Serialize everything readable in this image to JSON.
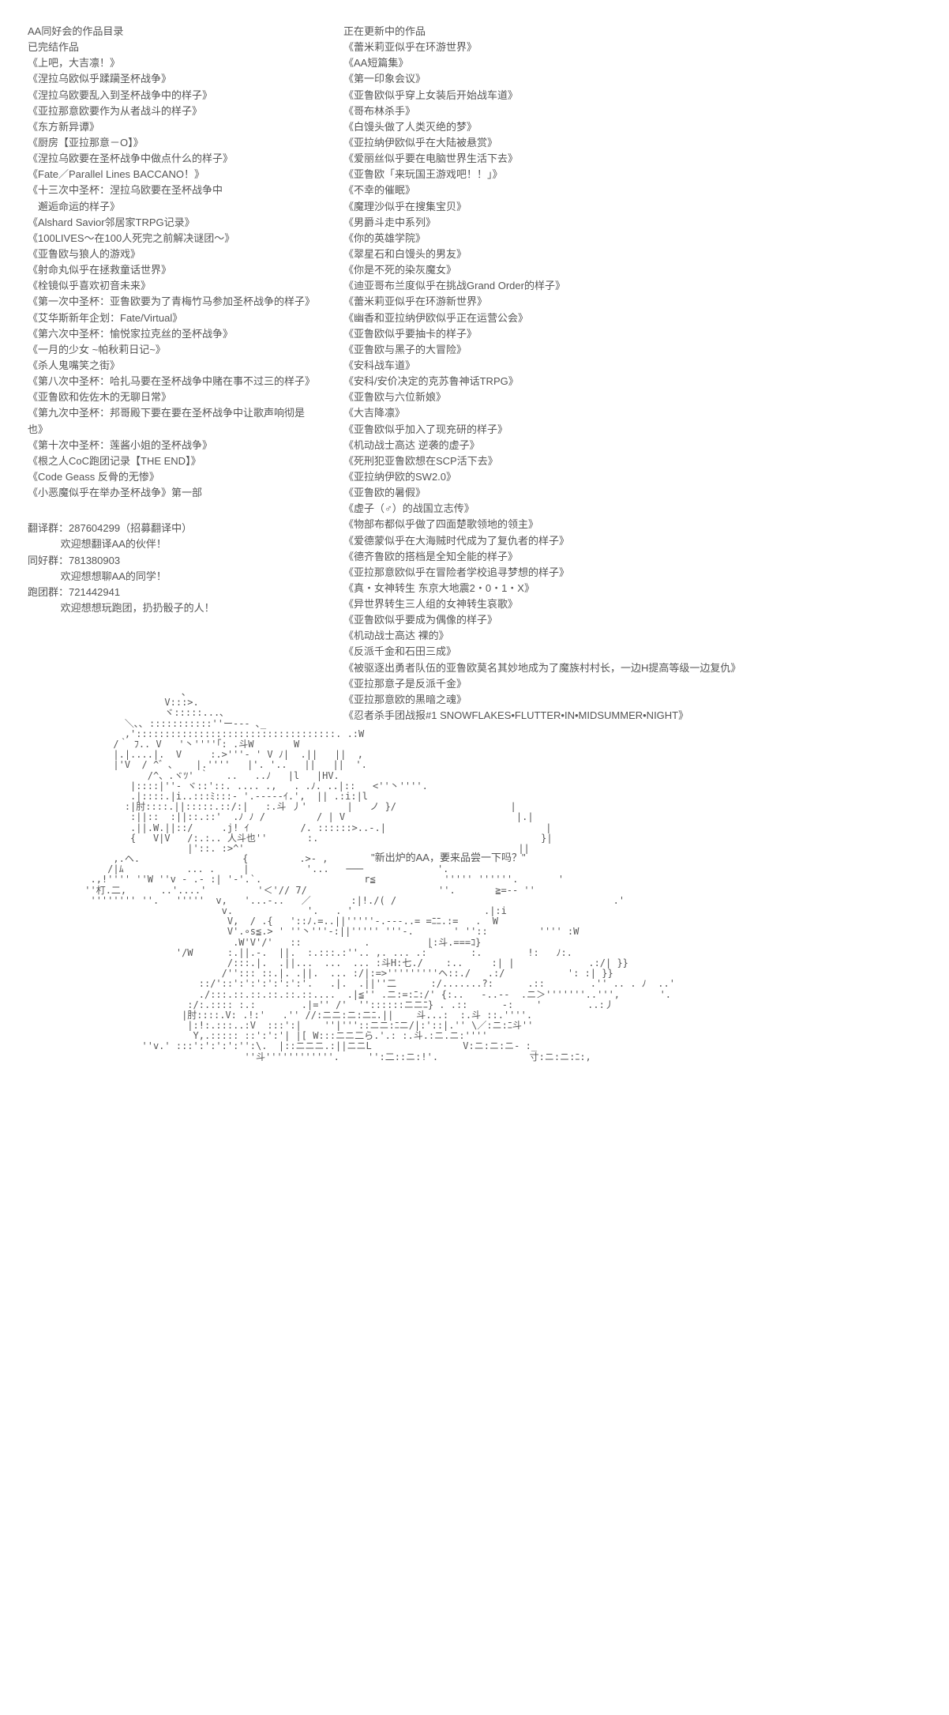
{
  "left": {
    "catalog_title": "AA同好会的作品目录",
    "completed_title": "已完结作品",
    "completed_works": [
      "《上吧，大吉凛！》",
      "《涅拉乌欧似乎蹂躏圣杯战争》",
      "《涅拉乌欧要乱入到圣杯战争中的样子》",
      "《亚拉那意欧要作为从者战斗的样子》",
      "《东方新异谭》",
      "《厨房【亚拉那意－O】》",
      "《涅拉乌欧要在圣杯战争中做点什么的样子》",
      "《Fate／Parallel Lines BACCANO！》",
      "《十三次中圣杯：涅拉乌欧要在圣杯战争中",
      "　邂逅命运的样子》",
      "《Alshard Savior邻居家TRPG记录》",
      "《100LIVES～在100人死完之前解决谜团～》",
      "《亚鲁欧与狼人的游戏》",
      "《射命丸似乎在拯救童话世界》",
      "《栓镜似乎喜欢初音未来》",
      "《第一次中圣杯：亚鲁欧要为了青梅竹马参加圣杯战争的样子》",
      "《艾华斯新年企划：Fate/Virtual》",
      "《第六次中圣杯：愉悦家拉克丝的圣杯战争》",
      "《一月的少女 ~帕秋莉日记~》",
      "《杀人鬼嘴笑之街》",
      "《第八次中圣杯：哈扎马要在圣杯战争中赌在事不过三的样子》",
      "《亚鲁欧和佐佐木的无聊日常》",
      "《第九次中圣杯：邦哥殿下要在要在圣杯战争中让歌声响彻是也》",
      "《第十次中圣杯：莲酱小姐的圣杯战争》",
      "《根之人CoC跑团记录【THE END】》",
      "《Code Geass 反骨的无惨》",
      "《小恶魔似乎在举办圣杯战争》第一部"
    ],
    "groups": [
      {
        "label": "翻译群：287604299（招募翻译中）",
        "sub": "欢迎想翻译AA的伙伴！"
      },
      {
        "label": "同好群：781380903",
        "sub": "欢迎想想聊AA的同学！"
      },
      {
        "label": "跑团群：721442941",
        "sub": "欢迎想想玩跑团，扔扔骰子的人！"
      }
    ],
    "ascii_art": "                           ､\n                        V:::>.\n                        ヾ:::::...､\n                 ＼､､ :::::::::::''ー--- ､_\n                 ,':::::::::::::::::::::::::::::::::::. .:W\n               /｀ ﾌ.. V   '丶''''｢: .斗W       W\n               |.|....|.  V     :.>'''- ' V ﾉ|  .||   ||  ,\n               |'V  / ^゛､    |.''''   |'. '..   ||   ||  '.\n                     /^、.ヾﾂ' ｀   ..   ..ﾉ   |l   |HV.\n                  |::::|''- ヾ::'::. .... .,   . .ﾉ. ..|::   <''丶''''.\n                  .|::::.|i..:::ﾐ:::- '.-----ｲ.',  || .:i:|l\n                 :|肘::::.||:::::.::/:|   :.斗 丿'       |   ノ }/                    |\n                  :||::  :||::.::'  .ﾉ ﾉ /         / | V                              |.|\n                  .||.W.||::/     .j! ｲ         /. ::::::>..-.|                            |\n                  {   V|V   /:.:.. 人斗也''       :.                                       }|\n                            |'::. :>^'                                                ||\n               ,.ヘ.                  {         .>- ,                    '\n              /|ﾑ           ... .     |          '...   ───             '.\n           .,!'''' ''W ''v - .- :| '-'.`.                  r≦            ''''' ''''''.       '\n          ''朾.二,      ..'....'         '＜'// 7/                       ''.       ≧=-- ''\n           '''''''' ''.   '''''  v,   '...-..   ／       :|!./( /                                      .'\n                                  v.             '.   . '                       .|:i\n                                   V,  / .{   '::ﾉ.=..||'''''-.---..= =ﾆﾆ.:=   .  W\n                                   V'.∘s≦.> ' ''丶'''-:||''''' '''-.       ' ''::         '''' :W\n                                    .W'V'/'   ::           .          |:斗.===ｺ}\n                          '/W      :.||.-.  ||.  :.:::.:''.. ,. ... .:｀      :.        !:   ﾉ:.\n                                   /:::.|.  .||...  ...  ... :斗H:七./    :..     :| |             .:/| }}\n                                  /''::: ::.|. .||.  ... :/|:=>'''''''''ヘ::./   .:/           ': :| }}\n                              ::/'::':':':':':':'.   .|.  .||''二      :/.......?:      .::        .'' .. . ﾉ  ..'\n                              ./:::.::.::.::.::.::....  .|≦'' .ニ:=:ﾆ:/' {:..   -..--  .ニ＞'''''''..''',       '.\n                            :/:.:::: :.:        .|='' /'  ''::::::ニニﾆ} . .::      -:    '        ..:丿\n                           |肘::::.V: .!:'   .'' //:ニニ:ニ:ニﾆ.||    斗...:  :.斗 ::.''''.\n                            |:!:.:::..:V  :::':|    ''|'''::ニニ:ﾆニ/|:'::|.'' \\／:ニ:ﾆ斗''\n                             Y,.::::: ::':':'| |[ W:::ニニ二ら.'.: :.斗.:ニ.ニ:''''\n                    ''v.' :::':':':':'':\\.  |::ニニニ.:||ニニL                V:ニ:ニ:ニ- :_\n                                      ''斗''''''''''''.     '':二::ニ:!'.                寸:ニ:ニ:ﾆ:,"
  },
  "right": {
    "updating_title": "正在更新中的作品",
    "updating_works": [
      "《蕾米莉亚似乎在环游世界》",
      "《AA短篇集》",
      "《第一印象会议》",
      "《亚鲁欧似乎穿上女装后开始战车道》",
      "《哥布林杀手》",
      "《白馒头做了人类灭绝的梦》",
      "《亚拉纳伊欧似乎在大陆被悬赏》",
      "《爱丽丝似乎要在电脑世界生活下去》",
      "《亚鲁欧「来玩国王游戏吧！！」》",
      "《不幸的催眠》",
      "《魔理沙似乎在搜集宝贝》",
      "《男爵斗走中系列》",
      "《你的英雄学院》",
      "《翠星石和白馒头的男友》",
      "《你是不死的染灰魔女》",
      "《迪亚哥布兰度似乎在挑战Grand Order的样子》",
      "《蕾米莉亚似乎在环游新世界》",
      "《幽香和亚拉纳伊欧似乎正在运营公会》",
      "《亚鲁欧似乎要抽卡的样子》",
      "《亚鲁欧与黑子的大冒险》",
      "《安科战车道》",
      "《安科/安价决定的克苏鲁神话TRPG》",
      "《亚鲁欧与六位新娘》",
      "《大吉降凛》",
      "《亚鲁欧似乎加入了现充研的样子》",
      "《机动战士高达 逆袭的虚子》",
      "《死刑犯亚鲁欧想在SCP活下去》",
      "《亚拉纳伊欧的SW2.0》",
      "《亚鲁欧的暑假》",
      "《虚子（♂）的战国立志传》",
      "《物部布都似乎做了四面楚歌领地的领主》",
      "《爱德蒙似乎在大海贼时代成为了复仇者的样子》",
      "《德齐鲁欧的搭档是全知全能的样子》",
      "《亚拉那意欧似乎在冒险者学校追寻梦想的样子》",
      "《真・女神转生 东京大地震2・0・1・X》",
      "《异世界转生三人组的女神转生哀歌》",
      "《亚鲁欧似乎要成为偶像的样子》",
      "《机动战士高达 裸的》",
      "《反派千金和石田三成》",
      "《被驱逐出勇者队伍的亚鲁欧莫名其妙地成为了魔族村村长，一边H提高等级一边复仇》",
      "《亚拉那意子是反派千金》",
      "《亚拉那意欧的黑暗之魂》",
      "《忍者杀手团战报#1 SNOWFLAKES•FLUTTER•IN•MIDSUMMER•NIGHT》"
    ],
    "quote": "\"新出炉的AA，要来品尝一下吗？\""
  },
  "colors": {
    "text": "#555555",
    "background": "#ffffff"
  }
}
